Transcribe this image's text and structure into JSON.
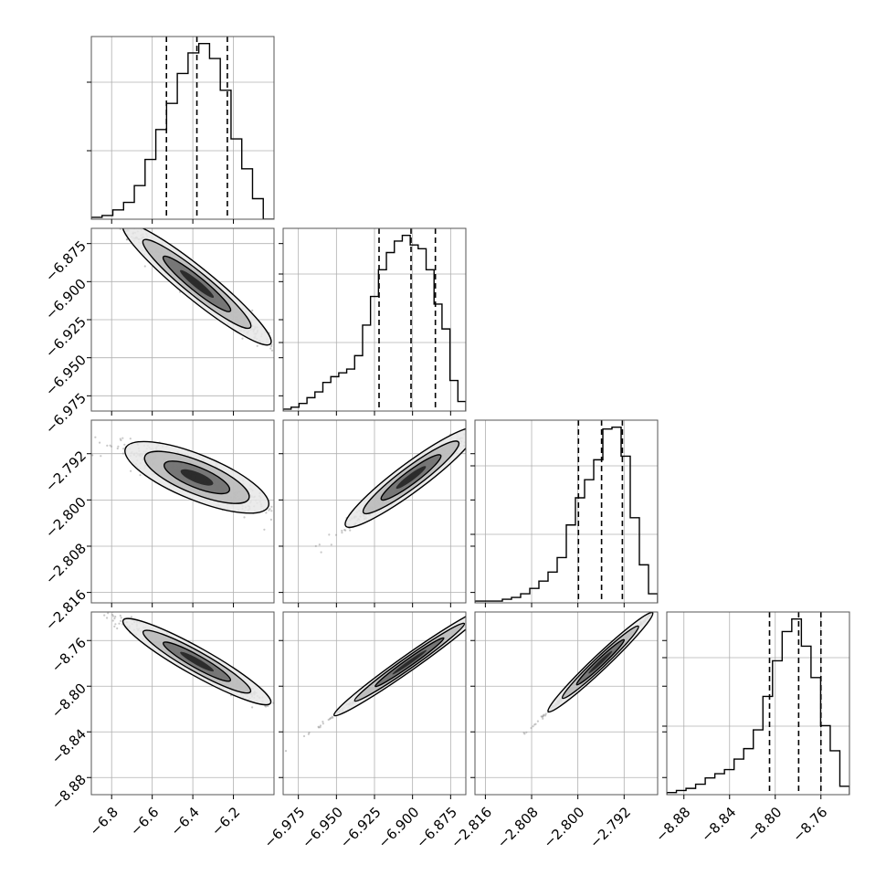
{
  "chart_data": {
    "type": "corner",
    "parameters": 4,
    "grid": true,
    "colors": {
      "hist": "#000000",
      "contour": "#000000",
      "scatter": "#9a9a9a",
      "grid": "#b0b0b0"
    },
    "axes": [
      {
        "range": [
          -6.9,
          -6.0
        ],
        "ticks": [
          -6.8,
          -6.6,
          -6.4,
          -6.2
        ],
        "tick_labels": [
          "−6.8",
          "−6.6",
          "−6.4",
          "−6.2"
        ],
        "hist": [
          1,
          2,
          5,
          9,
          18,
          32,
          48,
          62,
          78,
          89,
          94,
          86,
          69,
          43,
          27,
          11,
          0
        ],
        "quantiles": [
          -6.53,
          -6.38,
          -6.23
        ]
      },
      {
        "range": [
          -6.985,
          -6.865
        ],
        "ticks": [
          -6.975,
          -6.95,
          -6.925,
          -6.9,
          -6.875
        ],
        "tick_labels": [
          "−6.975",
          "−6.950",
          "−6.925",
          "−6.900",
          "−6.875"
        ],
        "hist": [
          1,
          2,
          4,
          7,
          10,
          15,
          18,
          20,
          22,
          29,
          45,
          60,
          74,
          83,
          89,
          92,
          87,
          85,
          74,
          56,
          43,
          16,
          5
        ],
        "quantiles": [
          -6.922,
          -6.901,
          -6.885
        ]
      },
      {
        "range": [
          -2.8178,
          -2.7862
        ],
        "ticks": [
          -2.816,
          -2.808,
          -2.8,
          -2.792
        ],
        "tick_labels": [
          "−2.816",
          "−2.808",
          "−2.800",
          "−2.792"
        ],
        "hist": [
          1,
          1,
          1,
          2,
          3,
          5,
          8,
          12,
          17,
          25,
          43,
          58,
          68,
          79,
          96,
          97,
          81,
          47,
          21,
          5
        ],
        "quantiles": [
          -2.7999,
          -2.7959,
          -2.7923
        ]
      },
      {
        "range": [
          -8.895,
          -8.735
        ],
        "ticks": [
          -8.88,
          -8.84,
          -8.8,
          -8.76
        ],
        "tick_labels": [
          "−8.88",
          "−8.84",
          "−8.80",
          "−8.76"
        ],
        "hist": [
          1,
          2,
          3,
          5,
          8,
          10,
          12,
          17,
          22,
          31,
          47,
          64,
          78,
          84,
          71,
          56,
          33,
          21,
          4
        ],
        "quantiles": [
          -8.805,
          -8.7795,
          -8.76
        ]
      }
    ],
    "pairs": [
      {
        "x": 0,
        "y": 1,
        "center": [
          -6.38,
          -6.9015
        ],
        "slope": -0.1083,
        "sigma_major": 0.165,
        "sigma_minor": 0.0037,
        "curvature": 0.03
      },
      {
        "x": 0,
        "y": 2,
        "center": [
          -6.38,
          -2.7961
        ],
        "slope": -0.0143,
        "sigma_major": 0.16,
        "sigma_minor": 0.0014,
        "curvature": 0.02
      },
      {
        "x": 1,
        "y": 2,
        "center": [
          -6.901,
          -2.7961
        ],
        "slope": 0.196,
        "sigma_major": 0.0195,
        "sigma_minor": 0.0008,
        "curvature": 0
      },
      {
        "x": 0,
        "y": 3,
        "center": [
          -6.38,
          -8.7785
        ],
        "slope": -0.1,
        "sigma_major": 0.165,
        "sigma_minor": 0.0035,
        "curvature": 0.04
      },
      {
        "x": 1,
        "y": 3,
        "center": [
          -6.902,
          -8.779
        ],
        "slope": 0.94,
        "sigma_major": 0.0225,
        "sigma_minor": 0.0009,
        "curvature": 0
      },
      {
        "x": 2,
        "y": 3,
        "center": [
          -2.7961,
          -8.779
        ],
        "slope": 4.8,
        "sigma_major": 0.0041,
        "sigma_minor": 0.0008,
        "curvature": 0
      }
    ]
  }
}
